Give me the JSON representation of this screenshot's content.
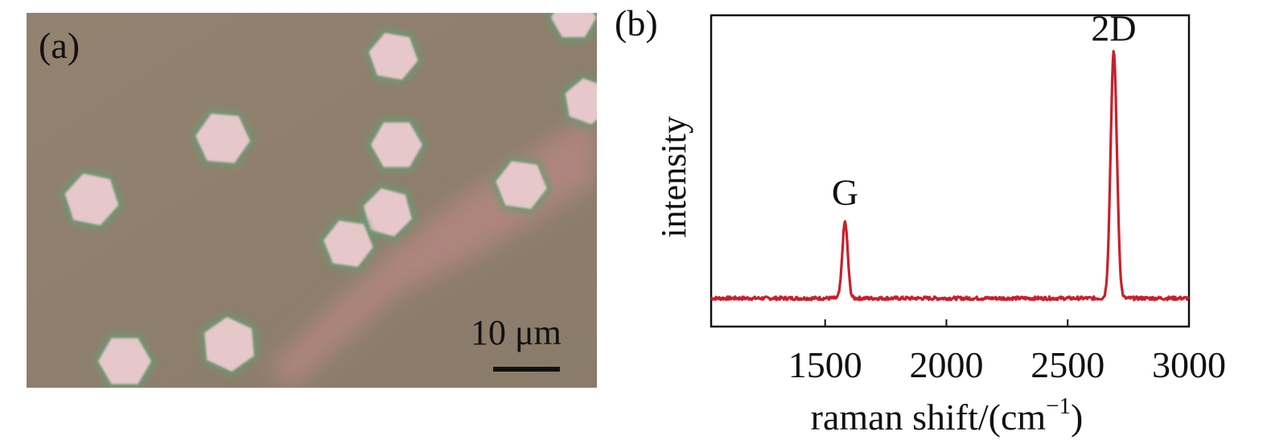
{
  "panel_a": {
    "label": "(a)",
    "scale_bar": "10 μm",
    "colors": {
      "background": "#8f7f6c",
      "flake": "#e6c8cb",
      "flake_edge": "#6a9a72",
      "stripe": "#c98c8d"
    }
  },
  "panel_b": {
    "label": "(b)"
  },
  "chart_data": {
    "type": "line",
    "title": "",
    "xlabel": "raman shift/(cm",
    "xlabel_sup": "−1",
    "xlabel_end": ")",
    "ylabel": "intensity",
    "xlim": [
      1030,
      3000
    ],
    "ylim": [
      0,
      1.1
    ],
    "x_ticks": [
      1500,
      2000,
      2500,
      3000
    ],
    "x_tick_labels": [
      "1500",
      "2000",
      "2500",
      "3000"
    ],
    "grid": false,
    "series": [
      {
        "color": "#c8202c",
        "baseline": 0.1,
        "peaks": [
          {
            "center": 1582,
            "height": 0.27,
            "width": 11
          },
          {
            "center": 2690,
            "height": 0.87,
            "width": 13
          }
        ]
      }
    ],
    "annotations": [
      {
        "text": "G",
        "x": 1582,
        "y": 0.43
      },
      {
        "text": "2D",
        "x": 2690,
        "y": 1.01
      }
    ]
  }
}
